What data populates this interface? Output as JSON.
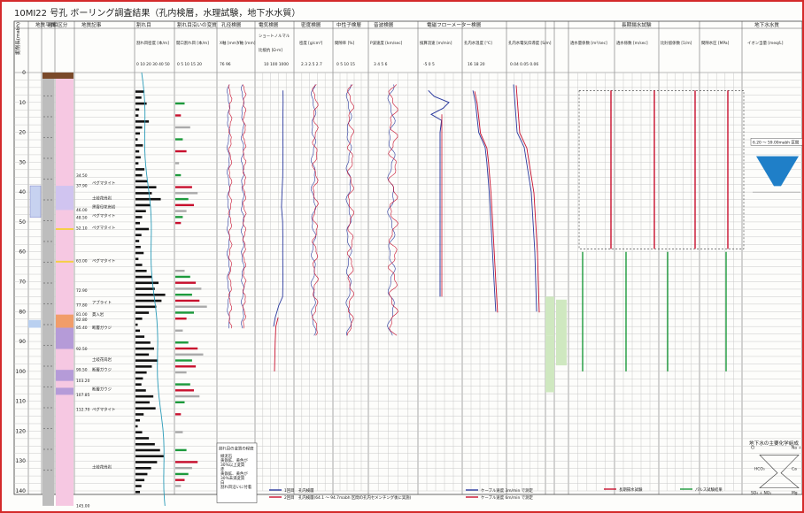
{
  "title": "10MI22 号孔 ボーリング調査結果（孔内検層，水理試験，地下水水質）",
  "depth_label": "掘削長(mabh)",
  "headers": {
    "geology": "地質平面",
    "lith_col": "岩相",
    "litho_col": "岩相区分",
    "frac_col": "割れ目帯",
    "description": "地質記事",
    "description_sub": "岩相",
    "fracture_density": "割れ目",
    "fracture_density_sub": "割れ目密度 [本/m]",
    "open_fracture": "割れ目沿いの変質",
    "open_fracture_sub": "開口割れ目 [本/m]",
    "caliper": "孔径検層",
    "caliper_x": "X軸 [mm]",
    "caliper_y": "Y軸 [mm]",
    "resistivity": "電気検層",
    "resistivity_sub": "ショートノルマル",
    "resistivity_unit": "比抵抗 [Ω·m]",
    "density": "密度検層",
    "density_unit": "密度 [g/cm³]",
    "neutron": "中性子検層",
    "neutron_unit": "間隙率 [%]",
    "sonic": "音波検層",
    "sonic_unit": "P波速度 [km/sec]",
    "flowmeter": "電磁フローメーター検層",
    "flow_rate": "換算流速 [m/min]",
    "temperature": "孔内水温度 [℃]",
    "conductivity": "孔内水電気伝導度 [S/m]",
    "hydro_zone": "透水区間",
    "hydro_test": "長期揚水試験",
    "hydraulic_k": "透水量係数 [m²/sec]",
    "hydraulic_k2": "透水係数 [m/sec]",
    "specific_storage": "比貯留係数 [1/m]",
    "pressure": "間隙水圧 [MPa]",
    "water_quality": "地下水水質",
    "ion": "イオン当量 [meq/L]"
  },
  "axis_ticks": {
    "fracture": "0 10 20 30 40 50",
    "open": "0 5 10 15 20",
    "caliper": "76 96",
    "resistivity": "10 100 1000",
    "density": "2.3 2.5 2.7",
    "neutron": "0 5 10 15",
    "sonic": "3 4 5 6",
    "flow": "-5 0 5",
    "temp": "16 18 20",
    "cond": "0.04 0.05 0.06"
  },
  "depths": [
    "0",
    "10",
    "20",
    "30",
    "40",
    "50",
    "60",
    "70",
    "80",
    "90",
    "100",
    "110",
    "120",
    "130",
    "140"
  ],
  "rock_labels": [
    "ペグマタイト",
    "土岐花崗岩",
    "ペグマタイト",
    "ペグマタイト",
    "ペグマタイト",
    "黒雲母花崗岩",
    "アプライト",
    "貫入岩",
    "断層ガウジ",
    "土岐花崗岩",
    "断層ガウジ",
    "断層ガウジ",
    "ペグマタイト",
    "土岐花崗岩"
  ],
  "depth_marks": [
    "34.50",
    "37.90",
    "46.00",
    "48.50",
    "52.10",
    "63.00",
    "72.90",
    "77.80",
    "81.00",
    "82.80",
    "85.40",
    "92.50",
    "99.50",
    "103.20",
    "107.85",
    "112.70",
    "145.00"
  ],
  "interval_label": "6.20 ～ 59.00mabh 区間",
  "legend": {
    "run1": "1回目　孔内検層",
    "run2": "2回目　孔内検層(64.1 ～ 94.7mabh 区間の孔内セメンチング後に実施)",
    "cable_up": "ケーブル速度 3m/min で測定",
    "cable_down": "ケーブル速度 6m/min で測定",
    "longterm": "長期揚水試験",
    "pulse": "パルス試験結果"
  },
  "trilinear": {
    "title": "地下水の主要化学組成",
    "labels": [
      "Cl",
      "Na + K",
      "HCO₃",
      "Ca",
      "SO₄ + NO₃",
      "Mg"
    ]
  },
  "box_legend": {
    "title": "割れ目の変質の程度",
    "lines": [
      "緑泥石",
      "黄鉄鉱、黄色が",
      "30%以上変質",
      "赤",
      "黄鉄鉱、黄色が",
      "30%未満変質",
      "白",
      "割れ目沿いに付着"
    ]
  },
  "colors": {
    "frame": "#d42a2a",
    "granite": "#f6c8e2",
    "aplite": "#8fd4b6",
    "dike": "#f19d6a",
    "gauge": "#b59bd8",
    "run1": "#2b3a9e",
    "run2": "#c8102e",
    "green": "#1d9a3c",
    "funnel": "#1f7fc8",
    "caliper_line": "#2a9bb8"
  },
  "chart_data": [
    {
      "type": "bar",
      "name": "fracture_density",
      "depth": [
        6,
        8,
        10,
        12,
        14,
        16,
        18,
        20,
        22,
        24,
        26,
        28,
        30,
        32,
        34,
        36,
        38,
        40,
        42,
        44,
        46,
        48,
        50,
        52,
        54,
        56,
        58,
        60,
        62,
        64,
        66,
        68,
        70,
        72,
        74,
        76,
        78,
        80,
        82,
        84,
        86,
        88,
        90,
        92,
        94,
        96,
        98,
        100,
        102,
        104,
        106,
        108,
        110,
        112,
        114,
        116,
        118,
        120,
        122,
        124,
        126,
        128,
        130,
        132,
        134,
        136,
        138,
        140
      ],
      "values": [
        12,
        8,
        15,
        5,
        4,
        18,
        9,
        6,
        3,
        10,
        5,
        7,
        4,
        12,
        9,
        16,
        28,
        22,
        34,
        20,
        14,
        9,
        6,
        18,
        8,
        5,
        7,
        11,
        4,
        9,
        15,
        22,
        31,
        26,
        40,
        35,
        28,
        18,
        9,
        3,
        6,
        12,
        20,
        25,
        18,
        30,
        22,
        15,
        10,
        8,
        14,
        24,
        19,
        27,
        11,
        6,
        3,
        9,
        18,
        26,
        33,
        38,
        29,
        21,
        16,
        12,
        8,
        6
      ],
      "xlim": [
        0,
        50
      ]
    },
    {
      "type": "bar",
      "name": "open_fracture",
      "depth": [
        10,
        14,
        18,
        22,
        26,
        30,
        34,
        38,
        40,
        42,
        44,
        46,
        48,
        50,
        66,
        68,
        70,
        72,
        74,
        76,
        78,
        80,
        82,
        86,
        90,
        92,
        94,
        96,
        98,
        100,
        104,
        106,
        108,
        110,
        114,
        120,
        126,
        130,
        132,
        134,
        136,
        138
      ],
      "values": [
        5,
        3,
        8,
        4,
        6,
        2,
        3,
        9,
        12,
        7,
        10,
        6,
        4,
        3,
        5,
        8,
        11,
        14,
        9,
        13,
        17,
        10,
        6,
        4,
        7,
        12,
        15,
        9,
        11,
        6,
        8,
        10,
        13,
        5,
        3,
        4,
        6,
        12,
        9,
        7,
        5,
        3
      ],
      "xlim": [
        0,
        20
      ]
    },
    {
      "type": "line",
      "name": "resistivity",
      "depth": [
        6,
        10,
        15,
        20,
        25,
        30,
        35,
        40,
        45,
        50,
        55,
        60,
        65,
        70,
        75,
        78,
        82,
        85,
        90,
        95,
        100
      ],
      "run1": [
        920,
        940,
        900,
        880,
        910,
        890,
        860,
        700,
        620,
        840,
        870,
        860,
        880,
        900,
        840,
        300,
        120,
        80,
        0,
        0,
        0
      ],
      "run2": [
        0,
        0,
        0,
        0,
        0,
        0,
        0,
        0,
        0,
        0,
        0,
        0,
        0,
        0,
        0,
        0,
        260,
        140,
        120,
        110,
        100
      ],
      "xlim": [
        1,
        10000
      ]
    },
    {
      "type": "line",
      "name": "density",
      "depth": [
        6,
        10,
        20,
        30,
        40,
        50,
        60,
        70,
        75,
        80,
        85
      ],
      "values": [
        2.62,
        2.64,
        2.6,
        2.63,
        2.58,
        2.62,
        2.61,
        2.63,
        2.55,
        2.6,
        2.5
      ],
      "xlim": [
        2.3,
        2.9
      ]
    },
    {
      "type": "line",
      "name": "temperature",
      "depth": [
        6,
        10,
        20,
        25,
        30,
        40,
        50,
        60,
        70,
        80
      ],
      "values": [
        16.1,
        16.4,
        16.8,
        17.6,
        17.8,
        18.1,
        18.3,
        18.5,
        18.7,
        18.9
      ],
      "xlim": [
        15,
        20
      ]
    },
    {
      "type": "line",
      "name": "flow_rate",
      "depth": [
        6,
        8,
        10,
        12,
        14,
        16,
        20,
        30,
        40,
        50,
        60,
        70,
        75
      ],
      "values": [
        -4,
        -2,
        3,
        1,
        -3,
        0.5,
        0,
        0,
        0,
        0,
        0,
        0,
        0
      ],
      "xlim": [
        -6,
        6
      ]
    }
  ]
}
